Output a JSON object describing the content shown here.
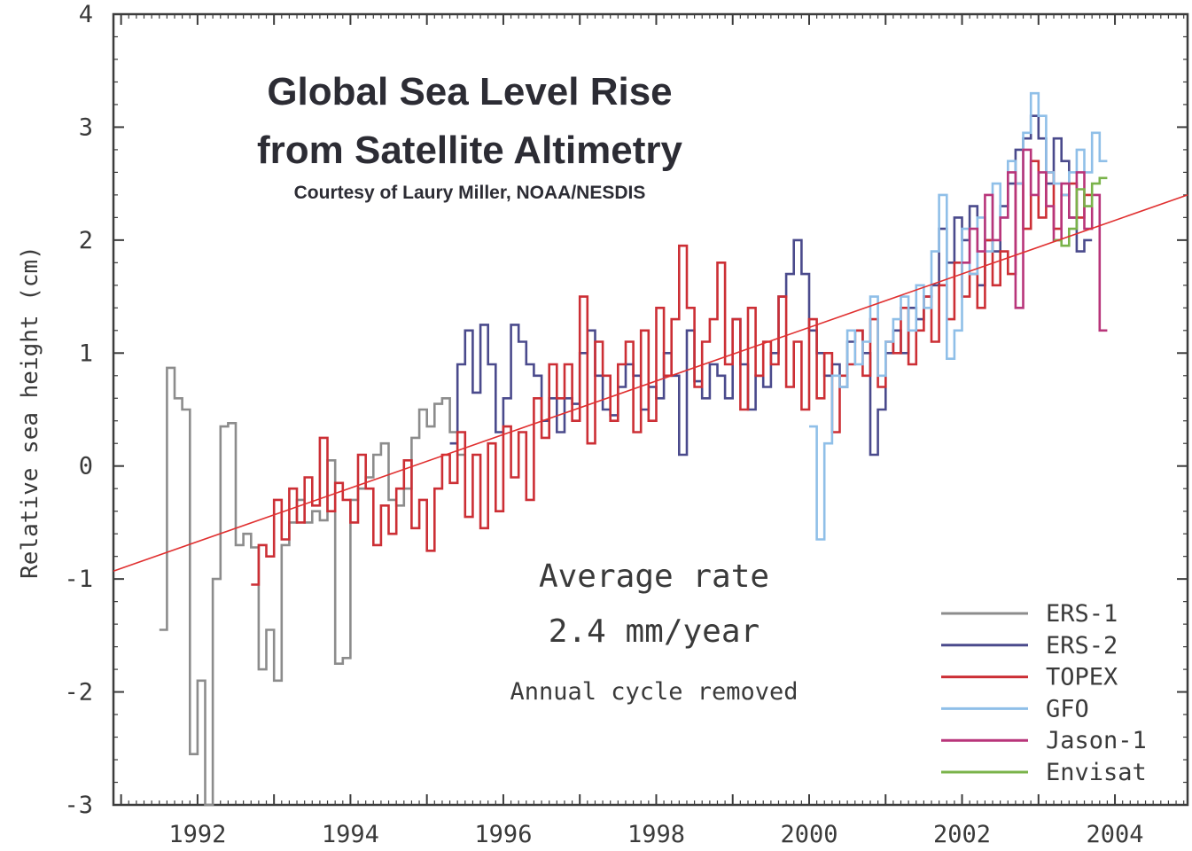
{
  "chart_data": {
    "type": "line",
    "title_line1": "Global Sea Level Rise",
    "title_line2": "from Satellite Altimetry",
    "subtitle": "Courtesy of Laury Miller, NOAA/NESDIS",
    "xlabel": "",
    "ylabel": "Relative sea height (cm)",
    "xlim": [
      1990.9,
      2004.95
    ],
    "ylim": [
      -3,
      4
    ],
    "x_ticks": [
      1992,
      1994,
      1996,
      1998,
      2000,
      2002,
      2004
    ],
    "y_ticks": [
      -3,
      -2,
      -1,
      0,
      1,
      2,
      3,
      4
    ],
    "annotations": {
      "rate_line1": "Average rate",
      "rate_line2": "2.4 mm/year",
      "note": "Annual cycle removed"
    },
    "trend": {
      "x": [
        1990.9,
        2004.95
      ],
      "y": [
        -0.93,
        2.4
      ],
      "color": "#e03030"
    },
    "legend_position": "bottom-right",
    "series": [
      {
        "name": "ERS-1",
        "color": "#8c8c8c",
        "x": [
          1991.55,
          1991.65,
          1991.75,
          1991.85,
          1991.95,
          1992.05,
          1992.15,
          1992.25,
          1992.35,
          1992.45,
          1992.55,
          1992.65,
          1992.75,
          1992.85,
          1992.95,
          1993.05,
          1993.15,
          1993.25,
          1993.35,
          1993.45,
          1993.55,
          1993.65,
          1993.75,
          1993.85,
          1993.95,
          1994.05,
          1994.15,
          1994.25,
          1994.35,
          1994.45,
          1994.55,
          1994.65,
          1994.75,
          1994.85,
          1994.95,
          1995.05,
          1995.15,
          1995.25,
          1995.35,
          1995.45
        ],
        "y": [
          -1.45,
          0.87,
          0.6,
          0.5,
          -2.55,
          -1.9,
          -3.0,
          -1.0,
          0.35,
          0.38,
          -0.7,
          -0.6,
          -0.72,
          -1.8,
          -1.45,
          -1.9,
          -0.7,
          -0.5,
          -0.3,
          -0.5,
          -0.4,
          -0.48,
          0.05,
          -1.75,
          -1.7,
          -0.3,
          -0.2,
          -0.1,
          0.1,
          0.2,
          -0.3,
          -0.35,
          -0.2,
          0.25,
          0.5,
          0.35,
          0.55,
          0.6,
          0.3,
          0.1
        ]
      },
      {
        "name": "ERS-2",
        "color": "#4a4a8c",
        "x": [
          1995.35,
          1995.45,
          1995.55,
          1995.65,
          1995.75,
          1995.85,
          1995.95,
          1996.05,
          1996.15,
          1996.25,
          1996.35,
          1996.45,
          1996.55,
          1996.65,
          1996.75,
          1996.85,
          1996.95,
          1997.05,
          1997.15,
          1997.25,
          1997.35,
          1997.45,
          1997.55,
          1997.65,
          1997.75,
          1997.85,
          1997.95,
          1998.05,
          1998.15,
          1998.25,
          1998.35,
          1998.45,
          1998.55,
          1998.65,
          1998.75,
          1998.85,
          1998.95,
          1999.05,
          1999.15,
          1999.25,
          1999.35,
          1999.45,
          1999.55,
          1999.65,
          1999.75,
          1999.85,
          1999.95,
          2000.05,
          2000.15,
          2000.25,
          2000.35,
          2000.45,
          2000.55,
          2000.65,
          2000.75,
          2000.85,
          2000.95,
          2001.05,
          2001.15,
          2001.25,
          2001.35,
          2001.45,
          2001.55,
          2001.65,
          2001.75,
          2001.85,
          2001.95,
          2002.05,
          2002.15,
          2002.25,
          2002.35,
          2002.45,
          2002.55,
          2002.65,
          2002.75,
          2002.85,
          2002.95,
          2003.05,
          2003.15,
          2003.25,
          2003.35,
          2003.45,
          2003.55,
          2003.65
        ],
        "y": [
          0.2,
          0.9,
          1.2,
          0.65,
          1.25,
          0.9,
          0.3,
          0.6,
          1.25,
          1.1,
          0.9,
          0.8,
          0.4,
          0.6,
          0.3,
          0.6,
          0.55,
          1.0,
          1.2,
          0.8,
          0.5,
          0.45,
          0.7,
          0.9,
          0.8,
          0.5,
          0.7,
          0.6,
          1.0,
          0.8,
          0.1,
          1.2,
          0.75,
          0.6,
          0.9,
          0.8,
          0.6,
          1.3,
          0.9,
          0.5,
          0.8,
          0.7,
          1.0,
          1.5,
          1.7,
          2.0,
          1.7,
          1.2,
          1.0,
          0.8,
          0.9,
          0.7,
          1.1,
          1.2,
          1.0,
          0.1,
          0.5,
          1.0,
          1.2,
          1.0,
          1.4,
          1.3,
          1.5,
          1.6,
          2.1,
          1.8,
          2.2,
          2.0,
          2.3,
          1.6,
          2.0,
          1.9,
          2.3,
          2.5,
          2.8,
          2.9,
          3.1,
          2.9,
          2.5,
          2.9,
          2.7,
          2.2,
          1.9,
          2.0
        ]
      },
      {
        "name": "TOPEX",
        "color": "#cc2f35",
        "x": [
          1992.75,
          1992.85,
          1992.95,
          1993.05,
          1993.15,
          1993.25,
          1993.35,
          1993.45,
          1993.55,
          1993.65,
          1993.75,
          1993.85,
          1993.95,
          1994.05,
          1994.15,
          1994.25,
          1994.35,
          1994.45,
          1994.55,
          1994.65,
          1994.75,
          1994.85,
          1994.95,
          1995.05,
          1995.15,
          1995.25,
          1995.35,
          1995.45,
          1995.55,
          1995.65,
          1995.75,
          1995.85,
          1995.95,
          1996.05,
          1996.15,
          1996.25,
          1996.35,
          1996.45,
          1996.55,
          1996.65,
          1996.75,
          1996.85,
          1996.95,
          1997.05,
          1997.15,
          1997.25,
          1997.35,
          1997.45,
          1997.55,
          1997.65,
          1997.75,
          1997.85,
          1997.95,
          1998.05,
          1998.15,
          1998.25,
          1998.35,
          1998.45,
          1998.55,
          1998.65,
          1998.75,
          1998.85,
          1998.95,
          1999.05,
          1999.15,
          1999.25,
          1999.35,
          1999.45,
          1999.55,
          1999.65,
          1999.75,
          1999.85,
          1999.95,
          2000.05,
          2000.15,
          2000.25,
          2000.35,
          2000.45,
          2000.55,
          2000.65,
          2000.75,
          2000.85,
          2000.95,
          2001.05,
          2001.15,
          2001.25,
          2001.35,
          2001.45,
          2001.55,
          2001.65,
          2001.75,
          2001.85,
          2001.95,
          2002.05,
          2002.15,
          2002.25,
          2002.35,
          2002.45,
          2002.55,
          2002.65,
          2002.75,
          2002.85,
          2002.95,
          2003.05,
          2003.15,
          2003.25,
          2003.35,
          2003.45,
          2003.55,
          2003.65
        ],
        "y": [
          -1.05,
          -0.7,
          -0.8,
          -0.3,
          -0.65,
          -0.2,
          -0.5,
          -0.1,
          -0.35,
          0.25,
          -0.4,
          -0.15,
          -0.3,
          -0.5,
          0.1,
          -0.2,
          -0.7,
          -0.35,
          -0.6,
          -0.2,
          0.05,
          -0.55,
          -0.3,
          -0.75,
          -0.2,
          0.1,
          -0.15,
          0.3,
          -0.45,
          0.1,
          -0.55,
          0.2,
          -0.4,
          0.35,
          -0.1,
          0.3,
          -0.3,
          0.6,
          0.25,
          0.9,
          0.6,
          0.9,
          0.4,
          1.5,
          0.2,
          1.1,
          0.8,
          0.4,
          0.9,
          1.1,
          0.3,
          1.2,
          0.4,
          1.4,
          0.8,
          1.3,
          1.95,
          1.4,
          0.7,
          1.1,
          1.3,
          1.8,
          0.9,
          1.3,
          0.5,
          1.4,
          0.8,
          1.1,
          0.9,
          1.5,
          0.7,
          1.1,
          0.5,
          1.3,
          0.6,
          1.0,
          0.3,
          0.8,
          0.9,
          1.2,
          0.8,
          1.3,
          0.7,
          1.1,
          1.0,
          1.4,
          0.9,
          1.2,
          1.5,
          1.1,
          1.6,
          1.3,
          1.8,
          1.5,
          1.7,
          1.4,
          2.0,
          1.6,
          1.9,
          1.7,
          2.5,
          2.1,
          2.7,
          2.2,
          2.6,
          2.1,
          2.4,
          2.5,
          2.2,
          2.4
        ]
      },
      {
        "name": "GFO",
        "color": "#8fbfe8",
        "x": [
          2000.05,
          2000.15,
          2000.25,
          2000.35,
          2000.45,
          2000.55,
          2000.65,
          2000.75,
          2000.85,
          2000.95,
          2001.05,
          2001.15,
          2001.25,
          2001.35,
          2001.45,
          2001.55,
          2001.65,
          2001.75,
          2001.85,
          2001.95,
          2002.05,
          2002.15,
          2002.25,
          2002.35,
          2002.45,
          2002.55,
          2002.65,
          2002.75,
          2002.85,
          2002.95,
          2003.05,
          2003.15,
          2003.25,
          2003.35,
          2003.45,
          2003.55,
          2003.65,
          2003.75,
          2003.85
        ],
        "y": [
          0.35,
          -0.65,
          0.2,
          0.8,
          0.7,
          1.2,
          0.9,
          1.1,
          1.5,
          0.8,
          1.1,
          1.3,
          1.5,
          1.2,
          1.6,
          1.4,
          1.9,
          2.4,
          0.95,
          1.2,
          2.1,
          1.7,
          2.2,
          1.9,
          2.5,
          2.2,
          2.7,
          2.5,
          2.95,
          3.3,
          3.1,
          2.6,
          2.5,
          2.4,
          2.6,
          2.8,
          2.6,
          2.95,
          2.7
        ]
      },
      {
        "name": "Jason-1",
        "color": "#b8357a",
        "x": [
          2002.05,
          2002.15,
          2002.25,
          2002.35,
          2002.45,
          2002.55,
          2002.65,
          2002.75,
          2002.85,
          2002.95,
          2003.05,
          2003.15,
          2003.25,
          2003.35,
          2003.45,
          2003.55,
          2003.65,
          2003.75,
          2003.85
        ],
        "y": [
          1.8,
          2.1,
          1.9,
          2.4,
          2.0,
          2.2,
          2.6,
          1.4,
          2.8,
          2.4,
          2.6,
          2.3,
          2.0,
          2.5,
          2.2,
          2.6,
          2.1,
          2.4,
          1.2
        ]
      },
      {
        "name": "Envisat",
        "color": "#7ab34a",
        "x": [
          2003.25,
          2003.35,
          2003.45,
          2003.55,
          2003.65,
          2003.75,
          2003.85
        ],
        "y": [
          2.0,
          1.95,
          2.1,
          2.45,
          2.3,
          2.5,
          2.55
        ]
      }
    ]
  }
}
